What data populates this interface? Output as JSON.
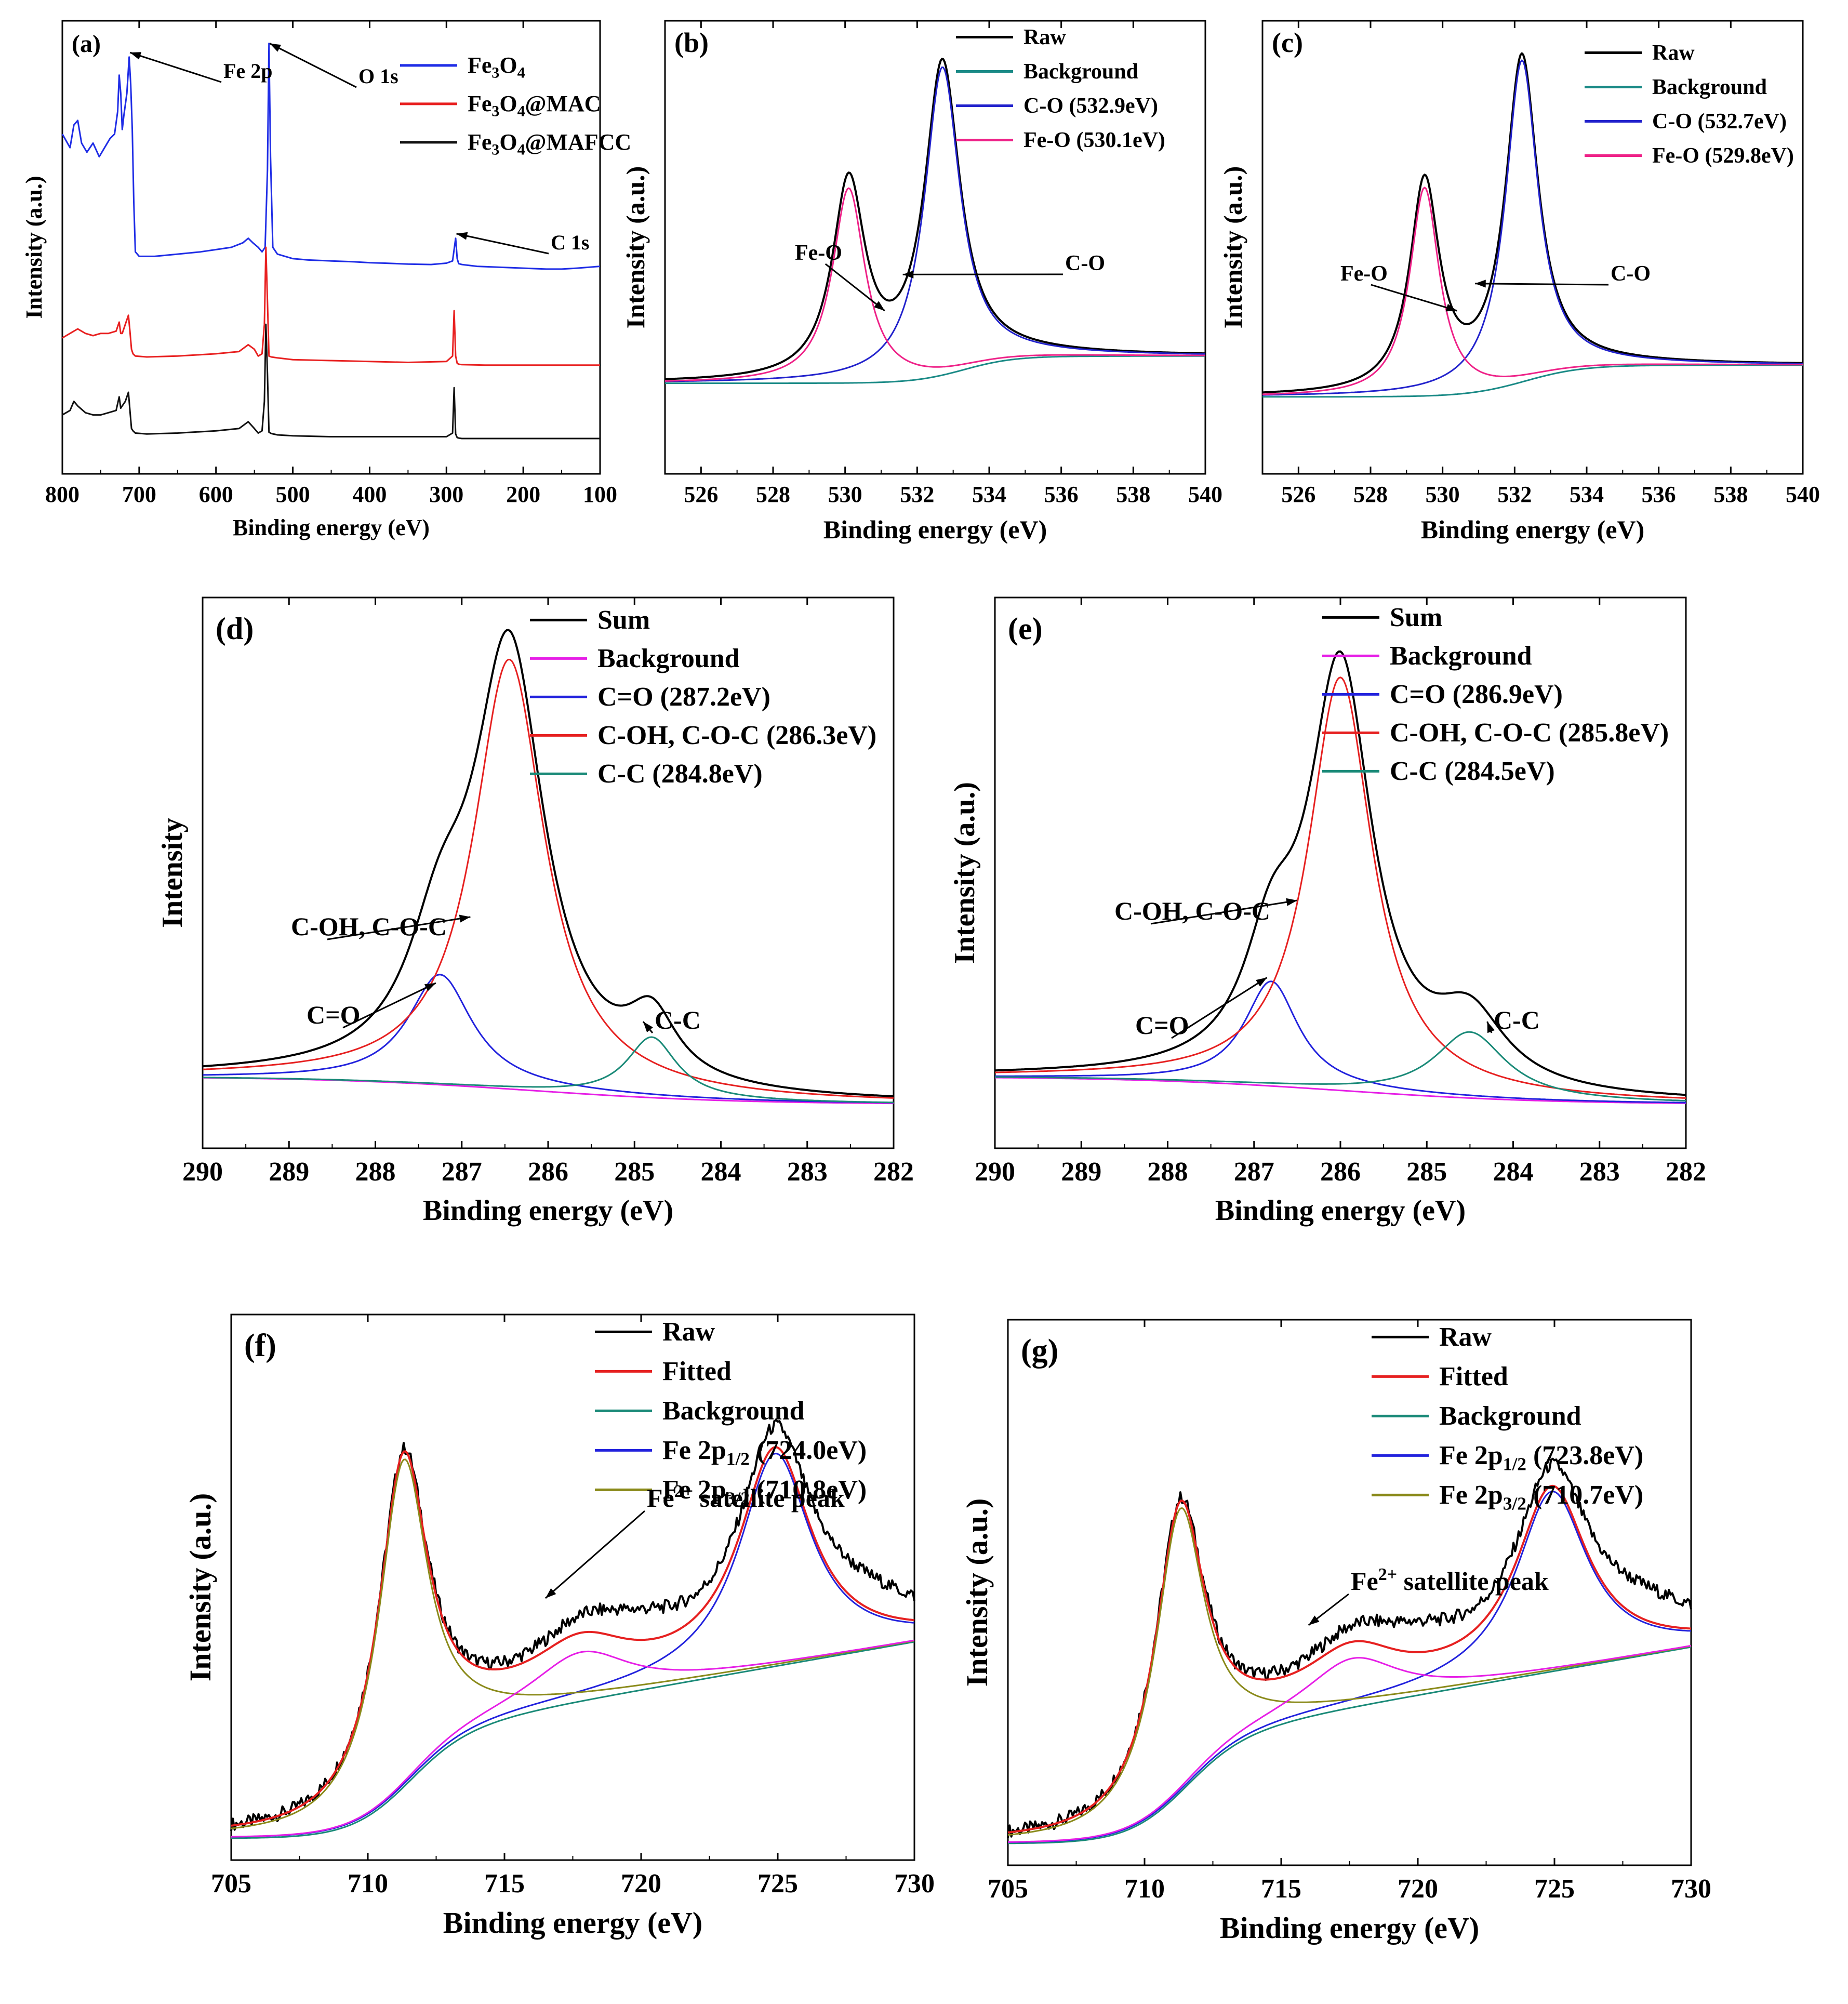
{
  "chart_data": [
    {
      "id": "a",
      "panel_label": "(a)",
      "type": "line",
      "xlabel": "Binding energy (eV)",
      "ylabel": "Intensity (a.u.)",
      "xlim": [
        800,
        100
      ],
      "ylim": [
        0,
        100
      ],
      "xticks": [
        800,
        700,
        600,
        500,
        400,
        300,
        200,
        100
      ],
      "xtick_labels": [
        "800",
        "700",
        "600",
        "500",
        "400",
        "300",
        "200",
        "100"
      ],
      "legend_position": "top-right",
      "series": [
        {
          "name": "Fe3O4",
          "label": "Fe",
          "sub": "3",
          "label2": "O",
          "sub2": "4",
          "label3": "",
          "color": "#1f2de6",
          "x": [
            800,
            790,
            785,
            780,
            775,
            768,
            760,
            752,
            745,
            738,
            732,
            728,
            726,
            724,
            722,
            720,
            716,
            713,
            711,
            709,
            707,
            705,
            700,
            680,
            650,
            620,
            600,
            580,
            565,
            558,
            552,
            545,
            540,
            536,
            533,
            531,
            529,
            526,
            520,
            500,
            480,
            450,
            420,
            400,
            380,
            350,
            320,
            300,
            292,
            288,
            286,
            284,
            280,
            260,
            230,
            200,
            170,
            150,
            130,
            100
          ],
          "y": [
            75,
            72,
            77,
            78,
            73,
            71,
            73,
            70,
            72,
            74,
            75,
            80,
            88,
            84,
            76,
            79,
            84,
            92,
            86,
            76,
            60,
            49,
            48,
            48,
            48.5,
            49,
            49.5,
            50,
            51,
            52,
            51,
            50,
            49,
            50,
            67,
            95,
            70,
            50,
            48.5,
            47.5,
            47.2,
            47,
            46.8,
            46.6,
            46.5,
            46.3,
            46.2,
            46.5,
            47,
            52,
            47.5,
            46.4,
            46.2,
            45.8,
            45.6,
            45.4,
            45.2,
            45.2,
            45.4,
            45.8
          ]
        },
        {
          "name": "Fe3O4@MAC",
          "label": "Fe",
          "sub": "3",
          "label2": "O",
          "sub2": "4",
          "label3": "@MAC",
          "color": "#e82020",
          "x": [
            800,
            790,
            780,
            770,
            760,
            750,
            740,
            730,
            726,
            724,
            722,
            718,
            714,
            712,
            710,
            708,
            705,
            690,
            650,
            600,
            570,
            558,
            550,
            545,
            540,
            537,
            535,
            533,
            531,
            528,
            520,
            500,
            450,
            400,
            350,
            300,
            292,
            290,
            288,
            286,
            284,
            280,
            250,
            200,
            150,
            100
          ],
          "y": [
            30,
            31,
            32,
            31,
            30.5,
            31,
            31,
            31.5,
            33.5,
            31,
            31,
            33,
            35,
            31.5,
            27.5,
            26.5,
            26,
            25.8,
            26,
            26.5,
            27,
            28.5,
            27.5,
            26,
            26.5,
            33,
            50,
            38,
            26,
            25.8,
            25.6,
            25.2,
            25,
            24.8,
            24.6,
            24.8,
            26,
            36,
            26,
            24.4,
            24.2,
            24.1,
            24,
            24,
            24,
            24
          ]
        },
        {
          "name": "Fe3O4@MAFCC",
          "label": "Fe",
          "sub": "3",
          "label2": "O",
          "sub2": "4",
          "label3": "@MAFCC",
          "color": "#111111",
          "x": [
            800,
            790,
            785,
            780,
            770,
            760,
            750,
            740,
            730,
            726,
            724,
            722,
            718,
            714,
            712,
            710,
            708,
            705,
            690,
            650,
            600,
            570,
            558,
            550,
            545,
            540,
            537,
            535,
            533,
            531,
            528,
            520,
            500,
            450,
            400,
            350,
            300,
            292,
            290,
            288,
            286,
            284,
            280,
            250,
            200,
            150,
            100
          ],
          "y": [
            13,
            14,
            16,
            15,
            13.5,
            13,
            13,
            13.5,
            14,
            17,
            14.5,
            15,
            16,
            18,
            14,
            10,
            9.5,
            9,
            8.8,
            9,
            9.5,
            10,
            11.5,
            10,
            9,
            9.5,
            16,
            33,
            22,
            9.2,
            8.9,
            8.6,
            8.4,
            8.2,
            8.2,
            8.2,
            8.2,
            9,
            19,
            8.8,
            8,
            7.9,
            7.8,
            7.8,
            7.8,
            7.8,
            7.8
          ]
        }
      ],
      "annotations": [
        {
          "text": "Fe 2p",
          "target_x": 712,
          "target_y": 93
        },
        {
          "text": "O 1s",
          "target_x": 530,
          "target_y": 95
        },
        {
          "text": "C 1s",
          "target_x": 287,
          "target_y": 53
        }
      ]
    },
    {
      "id": "b",
      "panel_label": "(b)",
      "type": "line",
      "xlabel": "Binding energy (eV)",
      "ylabel": "Intensity (a.u.)",
      "xlim": [
        525,
        540
      ],
      "ylim": [
        0,
        100
      ],
      "xticks": [
        526,
        528,
        530,
        532,
        534,
        536,
        538,
        540
      ],
      "xtick_labels": [
        "526",
        "528",
        "530",
        "532",
        "534",
        "536",
        "538",
        "540"
      ],
      "legend_position": "top-right",
      "bg": {
        "start": 20,
        "end": 26,
        "center": 533.3,
        "width": 0.7
      },
      "peaks": [
        {
          "center": 530.1,
          "amp": 43,
          "gamma": 0.55
        },
        {
          "center": 532.7,
          "amp": 68,
          "gamma": 0.6
        }
      ],
      "curves": [
        {
          "name": "Raw",
          "color": "#000000",
          "kind": "sum"
        },
        {
          "name": "Background",
          "color": "#1a8a86",
          "kind": "bg"
        },
        {
          "name": "C-O (532.9eV)",
          "color": "#2222cc",
          "kind": "peak",
          "peak": 1
        },
        {
          "name": "Fe-O (530.1eV)",
          "color": "#ee2288",
          "kind": "peak",
          "peak": 0
        }
      ],
      "annotations": [
        {
          "text": "Fe-O",
          "target_x": 531.1,
          "target_y": 36
        },
        {
          "text": "C-O",
          "target_x": 531.6,
          "target_y": 44
        }
      ]
    },
    {
      "id": "c",
      "panel_label": "(c)",
      "type": "line",
      "xlabel": "Binding energy (eV)",
      "ylabel": "Intensity (a.u.)",
      "xlim": [
        525,
        540
      ],
      "ylim": [
        0,
        100
      ],
      "xticks": [
        526,
        528,
        530,
        532,
        534,
        536,
        538,
        540
      ],
      "xtick_labels": [
        "526",
        "528",
        "530",
        "532",
        "534",
        "536",
        "538",
        "540"
      ],
      "legend_position": "top-right",
      "bg": {
        "start": 17,
        "end": 24,
        "center": 532.3,
        "width": 0.8
      },
      "peaks": [
        {
          "center": 529.5,
          "amp": 46,
          "gamma": 0.5
        },
        {
          "center": 532.2,
          "amp": 71,
          "gamma": 0.55
        }
      ],
      "curves": [
        {
          "name": "Raw",
          "color": "#000000",
          "kind": "sum"
        },
        {
          "name": "Background",
          "color": "#1a8a86",
          "kind": "bg"
        },
        {
          "name": "C-O (532.7eV)",
          "color": "#2222cc",
          "kind": "peak",
          "peak": 1
        },
        {
          "name": "Fe-O (529.8eV)",
          "color": "#ee2288",
          "kind": "peak",
          "peak": 0
        }
      ],
      "annotations": [
        {
          "text": "Fe-O",
          "target_x": 530.4,
          "target_y": 36
        },
        {
          "text": "C-O",
          "target_x": 530.9,
          "target_y": 42
        }
      ]
    },
    {
      "id": "d",
      "panel_label": "(d)",
      "type": "line",
      "xlabel": "Binding energy (eV)",
      "ylabel": "Intensity",
      "xlim": [
        290,
        282
      ],
      "ylim": [
        0,
        100
      ],
      "xticks": [
        290,
        289,
        288,
        287,
        286,
        285,
        284,
        283,
        282
      ],
      "xtick_labels": [
        "290",
        "289",
        "288",
        "287",
        "286",
        "285",
        "284",
        "283",
        "282"
      ],
      "legend_position": "top-right",
      "bg": {
        "start": 13,
        "end": 8,
        "center": 286.2,
        "width": 1.2
      },
      "peaks": [
        {
          "center": 287.25,
          "amp": 20,
          "gamma": 0.45
        },
        {
          "center": 286.45,
          "amp": 78,
          "gamma": 0.5
        },
        {
          "center": 284.8,
          "amp": 11,
          "gamma": 0.35
        }
      ],
      "curves": [
        {
          "name": "Sum",
          "color": "#000000",
          "kind": "sum"
        },
        {
          "name": "Background",
          "color": "#e61ee6",
          "kind": "bg"
        },
        {
          "name": "C=O (287.2eV)",
          "color": "#2222dd",
          "kind": "peak",
          "peak": 0
        },
        {
          "name": "C-OH, C-O-C (286.3eV)",
          "color": "#e62020",
          "kind": "peak",
          "peak": 1
        },
        {
          "name": "C-C (284.8eV)",
          "color": "#1a8a78",
          "kind": "peak",
          "peak": 2
        }
      ],
      "annotations": [
        {
          "text": "C=O",
          "target_x": 287.3,
          "target_y": 30
        },
        {
          "text": "C-OH, C-O-C",
          "target_x": 286.9,
          "target_y": 42
        },
        {
          "text": "C-C",
          "target_x": 284.9,
          "target_y": 23
        }
      ]
    },
    {
      "id": "e",
      "panel_label": "(e)",
      "type": "line",
      "xlabel": "Binding energy (eV)",
      "ylabel": "Intensity (a.u.)",
      "xlim": [
        290,
        282
      ],
      "ylim": [
        0,
        100
      ],
      "xticks": [
        290,
        289,
        288,
        287,
        286,
        285,
        284,
        283,
        282
      ],
      "xtick_labels": [
        "290",
        "289",
        "288",
        "287",
        "286",
        "285",
        "284",
        "283",
        "282"
      ],
      "legend_position": "top-right",
      "bg": {
        "start": 13,
        "end": 8,
        "center": 286.0,
        "width": 1.2
      },
      "peaks": [
        {
          "center": 286.8,
          "amp": 19,
          "gamma": 0.38
        },
        {
          "center": 286.0,
          "amp": 75,
          "gamma": 0.45
        },
        {
          "center": 284.5,
          "amp": 12,
          "gamma": 0.5
        }
      ],
      "curves": [
        {
          "name": "Sum",
          "color": "#000000",
          "kind": "sum"
        },
        {
          "name": "Background",
          "color": "#e61ee6",
          "kind": "bg"
        },
        {
          "name": "C=O (286.9eV)",
          "color": "#2222dd",
          "kind": "peak",
          "peak": 0
        },
        {
          "name": "C-OH, C-O-C (285.8eV)",
          "color": "#e62020",
          "kind": "peak",
          "peak": 1
        },
        {
          "name": "C-C (284.5eV)",
          "color": "#1a8a78",
          "kind": "peak",
          "peak": 2
        }
      ],
      "annotations": [
        {
          "text": "C=O",
          "target_x": 286.85,
          "target_y": 31
        },
        {
          "text": "C-OH, C-O-C",
          "target_x": 286.5,
          "target_y": 45
        },
        {
          "text": "C-C",
          "target_x": 284.3,
          "target_y": 23
        }
      ]
    },
    {
      "id": "f",
      "panel_label": "(f)",
      "type": "line",
      "xlabel": "Binding energy (eV)",
      "ylabel": "Intensity (a.u.)",
      "xlim": [
        705,
        730
      ],
      "ylim": [
        0,
        100
      ],
      "xticks": [
        705,
        710,
        715,
        720,
        725,
        730
      ],
      "xtick_labels": [
        "705",
        "710",
        "715",
        "720",
        "725",
        "730"
      ],
      "legend_position": "top-right",
      "bg": {
        "start": 4,
        "end": 40,
        "center": 711.5,
        "width": 1.2,
        "slope": 0.6
      },
      "sat": {
        "center": 717.8,
        "amp": 9,
        "gamma": 2.2
      },
      "peaks": [
        {
          "center": 724.9,
          "amp": 39,
          "gamma": 1.6
        },
        {
          "center": 711.3,
          "amp": 60,
          "gamma": 1.1
        }
      ],
      "curves": [
        {
          "name": "Raw",
          "color": "#000000",
          "kind": "raw"
        },
        {
          "name": "Fitted",
          "color": "#e62020",
          "kind": "sum"
        },
        {
          "name": "Background",
          "color": "#1a8a78",
          "kind": "bg"
        },
        {
          "name": "Fe 2p1/2 (724.0eV)",
          "label": "Fe 2p",
          "sub": "1/2",
          "label2": " (724.0eV)",
          "color": "#2222dd",
          "kind": "peak",
          "peak": 0
        },
        {
          "name": "Fe 2p3/2 (710.8eV)",
          "label": "Fe 2p",
          "sub": "3/2",
          "label2": " (710.8eV)",
          "color": "#8a8a1a",
          "kind": "peak",
          "peak": 1
        }
      ],
      "satellite_curve_color": "#e61ee6",
      "annotations": [
        {
          "text": "Fe",
          "sup": "2+",
          "text2": " satellite peak",
          "target_x": 716.5,
          "target_y": 48
        }
      ]
    },
    {
      "id": "g",
      "panel_label": "(g)",
      "type": "line",
      "xlabel": "Binding energy (eV)",
      "ylabel": "Intensity (a.u.)",
      "xlim": [
        705,
        730
      ],
      "ylim": [
        0,
        100
      ],
      "xticks": [
        705,
        710,
        715,
        720,
        725,
        730
      ],
      "xtick_labels": [
        "705",
        "710",
        "715",
        "720",
        "725",
        "730"
      ],
      "legend_position": "top-right",
      "bg": {
        "start": 4,
        "end": 40,
        "center": 711.5,
        "width": 1.2,
        "slope": 0.6
      },
      "sat": {
        "center": 717.6,
        "amp": 9,
        "gamma": 2.1
      },
      "peaks": [
        {
          "center": 724.9,
          "amp": 33,
          "gamma": 1.6
        },
        {
          "center": 711.3,
          "amp": 52,
          "gamma": 1.1
        }
      ],
      "curves": [
        {
          "name": "Raw",
          "color": "#000000",
          "kind": "raw"
        },
        {
          "name": "Fitted",
          "color": "#e62020",
          "kind": "sum"
        },
        {
          "name": "Background",
          "color": "#1a8a78",
          "kind": "bg"
        },
        {
          "name": "Fe 2p1/2 (723.8eV)",
          "label": "Fe 2p",
          "sub": "1/2",
          "label2": " (723.8eV)",
          "color": "#2222dd",
          "kind": "peak",
          "peak": 0
        },
        {
          "name": "Fe 2p3/2 (710.7eV)",
          "label": "Fe 2p",
          "sub": "3/2",
          "label2": " (710.7eV)",
          "color": "#8a8a1a",
          "kind": "peak",
          "peak": 1
        }
      ],
      "satellite_curve_color": "#e61ee6",
      "annotations": [
        {
          "text": "Fe",
          "sup": "2+",
          "text2": " satellite peak",
          "target_x": 716.0,
          "target_y": 44
        }
      ]
    }
  ]
}
